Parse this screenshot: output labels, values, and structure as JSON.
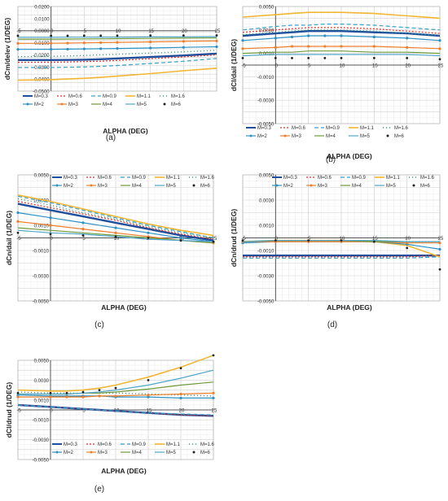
{
  "series_styles": [
    {
      "name": "M=0.3",
      "color": "#1f4e9c",
      "dash": "",
      "width": 2.4,
      "marker": "none"
    },
    {
      "name": "M=0.6",
      "color": "#d9312a",
      "dash": "2,2",
      "width": 1.2,
      "marker": "none"
    },
    {
      "name": "M=0.9",
      "color": "#3aa0c9",
      "dash": "5,3",
      "width": 1.2,
      "marker": "none"
    },
    {
      "name": "M=1.1",
      "color": "#f2b632",
      "dash": "",
      "width": 1.6,
      "marker": "none"
    },
    {
      "name": "M=1.6",
      "color": "#2e9e78",
      "dash": "1,3",
      "width": 1.4,
      "marker": "none"
    },
    {
      "name": "M=2",
      "color": "#2e91c5",
      "dash": "",
      "width": 1.2,
      "marker": "circle"
    },
    {
      "name": "M=3",
      "color": "#f07f2d",
      "dash": "",
      "width": 1.2,
      "marker": "circle"
    },
    {
      "name": "M=4",
      "color": "#6f9a3a",
      "dash": "",
      "width": 1.2,
      "marker": "none"
    },
    {
      "name": "M=5",
      "color": "#52a6c9",
      "dash": "",
      "width": 1.2,
      "marker": "none"
    },
    {
      "name": "M=6",
      "color": "#222222",
      "dash": "0,10",
      "width": 0,
      "marker": "dot"
    }
  ],
  "chart_data": [
    {
      "panel": "(a)",
      "type": "line",
      "ylabel": "dCm/delev (1/DEG)",
      "xlabel": "ALPHA (DEG)",
      "xlim": [
        -5,
        25
      ],
      "ylim": [
        -0.05,
        0.02
      ],
      "yticks": [
        "0.0200",
        "0.0100",
        "0.0000",
        "-0.0100",
        "-0.0200",
        "-0.0300",
        "-0.0400",
        "-0.0500"
      ],
      "xticks": [
        "-5",
        "0",
        "5",
        "10",
        "15",
        "20",
        "25"
      ],
      "x": [
        -5,
        0,
        2.5,
        5,
        7.5,
        10,
        15,
        20,
        25
      ],
      "series": [
        {
          "name": "M=0.3",
          "values": [
            -0.0243,
            -0.0243,
            -0.0242,
            -0.024,
            -0.0236,
            -0.023,
            -0.0218,
            -0.0205,
            -0.019
          ]
        },
        {
          "name": "M=0.6",
          "values": [
            -0.0262,
            -0.0261,
            -0.0259,
            -0.0256,
            -0.0252,
            -0.0246,
            -0.0232,
            -0.0217,
            -0.02
          ]
        },
        {
          "name": "M=0.9",
          "values": [
            -0.0305,
            -0.0305,
            -0.0303,
            -0.03,
            -0.0295,
            -0.0288,
            -0.0272,
            -0.0253,
            -0.023
          ]
        },
        {
          "name": "M=1.1",
          "values": [
            -0.041,
            -0.0405,
            -0.04,
            -0.0394,
            -0.0386,
            -0.0376,
            -0.0355,
            -0.0332,
            -0.031
          ]
        },
        {
          "name": "M=1.6",
          "values": [
            -0.0215,
            -0.0212,
            -0.0209,
            -0.0205,
            -0.02,
            -0.0195,
            -0.0185,
            -0.0175,
            -0.0163
          ]
        },
        {
          "name": "M=2",
          "values": [
            -0.0155,
            -0.0154,
            -0.0153,
            -0.0151,
            -0.0149,
            -0.0147,
            -0.0143,
            -0.0138,
            -0.0133
          ]
        },
        {
          "name": "M=3",
          "values": [
            -0.0105,
            -0.0104,
            -0.0103,
            -0.0101,
            -0.0099,
            -0.0097,
            -0.0093,
            -0.0089,
            -0.0085
          ]
        },
        {
          "name": "M=4",
          "values": [
            -0.007,
            -0.007,
            -0.0069,
            -0.0068,
            -0.0067,
            -0.0066,
            -0.0064,
            -0.0062,
            -0.006
          ]
        },
        {
          "name": "M=5",
          "values": [
            -0.0055,
            -0.0055,
            -0.0054,
            -0.0054,
            -0.0053,
            -0.0053,
            -0.0052,
            -0.0051,
            -0.005
          ]
        },
        {
          "name": "M=6",
          "values": [
            -0.0042,
            -0.0042,
            -0.0042,
            -0.0041,
            -0.0041,
            -0.0041,
            -0.004,
            -0.004,
            -0.0039
          ]
        }
      ]
    },
    {
      "panel": "(b)",
      "type": "line",
      "ylabel": "dCl/dail (1/DEG)",
      "xlabel": "ALPHA (DEG)",
      "xlim": [
        -5,
        25
      ],
      "ylim": [
        -0.005,
        0.005
      ],
      "yticks": [
        "0.0050",
        "0.0030",
        "0.0010",
        "-0.0010",
        "-0.0030",
        "-0.0050"
      ],
      "xticks": [
        "-5",
        "0",
        "5",
        "10",
        "15",
        "20",
        "25"
      ],
      "x": [
        -5,
        0,
        2.5,
        5,
        7.5,
        10,
        15,
        20,
        25
      ],
      "series": [
        {
          "name": "M=0.3",
          "values": [
            0.0025,
            0.0027,
            0.0028,
            0.0029,
            0.0029,
            0.0029,
            0.0028,
            0.0027,
            0.0025
          ]
        },
        {
          "name": "M=0.6",
          "values": [
            0.0028,
            0.003,
            0.0031,
            0.0032,
            0.0032,
            0.0032,
            0.0031,
            0.0029,
            0.0027
          ]
        },
        {
          "name": "M=0.9",
          "values": [
            0.003,
            0.0033,
            0.0034,
            0.0034,
            0.0035,
            0.0035,
            0.0034,
            0.0032,
            0.003
          ]
        },
        {
          "name": "M=1.1",
          "values": [
            0.0041,
            0.0043,
            0.0044,
            0.0045,
            0.0045,
            0.0045,
            0.0044,
            0.0042,
            0.004
          ]
        },
        {
          "name": "M=1.6",
          "values": [
            0.0026,
            0.0028,
            0.0029,
            0.003,
            0.003,
            0.003,
            0.0029,
            0.0027,
            0.0025
          ]
        },
        {
          "name": "M=2",
          "values": [
            0.0021,
            0.0023,
            0.0024,
            0.0025,
            0.0025,
            0.0025,
            0.0024,
            0.0023,
            0.0021
          ]
        },
        {
          "name": "M=3",
          "values": [
            0.0014,
            0.0015,
            0.0016,
            0.0016,
            0.0016,
            0.0016,
            0.0016,
            0.0015,
            0.0014
          ]
        },
        {
          "name": "M=4",
          "values": [
            0.001,
            0.0011,
            0.0011,
            0.0012,
            0.0012,
            0.0012,
            0.0011,
            0.0011,
            0.001
          ]
        },
        {
          "name": "M=5",
          "values": [
            0.0008,
            0.0009,
            0.0009,
            0.0009,
            0.0009,
            0.0009,
            0.0009,
            0.0009,
            0.0008
          ]
        },
        {
          "name": "M=6",
          "values": [
            0.0006,
            0.0006,
            0.0006,
            0.0006,
            0.0006,
            0.0006,
            0.0006,
            0.0006,
            0.0005
          ]
        }
      ]
    },
    {
      "panel": "(c)",
      "type": "line",
      "ylabel": "dCn/dail (1/DEG)",
      "xlabel": "ALPHA (DEG)",
      "xlim": [
        -5,
        25
      ],
      "ylim": [
        -0.005,
        0.005
      ],
      "yticks": [
        "0.0050",
        "0.0030",
        "0.0010",
        "-0.0010",
        "-0.0030",
        "-0.0050"
      ],
      "xticks": [
        "-5",
        "0",
        "5",
        "10",
        "15",
        "20",
        "25"
      ],
      "x": [
        -5,
        0,
        5,
        10,
        15,
        20,
        25
      ],
      "series": [
        {
          "name": "M=0.3",
          "values": [
            0.0027,
            0.0022,
            0.0017,
            0.0012,
            0.0007,
            0.0002,
            -0.0002
          ]
        },
        {
          "name": "M=0.6",
          "values": [
            0.0029,
            0.0024,
            0.0019,
            0.0014,
            0.0008,
            0.0003,
            -0.0001
          ]
        },
        {
          "name": "M=0.9",
          "values": [
            0.0033,
            0.0028,
            0.0022,
            0.0016,
            0.001,
            0.0005,
            0.0
          ]
        },
        {
          "name": "M=1.1",
          "values": [
            0.0034,
            0.0029,
            0.0023,
            0.0017,
            0.0011,
            0.0006,
            0.0002
          ]
        },
        {
          "name": "M=1.6",
          "values": [
            0.0031,
            0.0026,
            0.002,
            0.0015,
            0.0009,
            0.0004,
            0.0
          ]
        },
        {
          "name": "M=2",
          "values": [
            0.002,
            0.0016,
            0.0012,
            0.0008,
            0.0004,
            0.0,
            -0.0003
          ]
        },
        {
          "name": "M=3",
          "values": [
            0.0013,
            0.001,
            0.0007,
            0.0004,
            0.0001,
            -0.0002,
            -0.0004
          ]
        },
        {
          "name": "M=4",
          "values": [
            0.0008,
            0.0006,
            0.0004,
            0.0002,
            0.0,
            -0.0002,
            -0.0004
          ]
        },
        {
          "name": "M=5",
          "values": [
            0.0006,
            0.0004,
            0.0003,
            0.0001,
            -0.0001,
            -0.0002,
            -0.0003
          ]
        },
        {
          "name": "M=6",
          "values": [
            0.0004,
            0.0003,
            0.0002,
            0.0001,
            0.0,
            -0.0002,
            -0.0003
          ]
        }
      ]
    },
    {
      "panel": "(d)",
      "type": "line",
      "ylabel": "dCn/drud (1/DEG)",
      "xlabel": "ALPHA (DEG)",
      "xlim": [
        -5,
        25
      ],
      "ylim": [
        -0.005,
        0.005
      ],
      "yticks": [
        "0.0050",
        "0.0030",
        "0.0010",
        "-0.0010",
        "-0.0030",
        "-0.0050"
      ],
      "xticks": [
        "-5",
        "0",
        "5",
        "10",
        "15",
        "20",
        "25"
      ],
      "x": [
        -5,
        0,
        5,
        10,
        15,
        20,
        25
      ],
      "series": [
        {
          "name": "M=0.3",
          "values": [
            -0.0014,
            -0.0014,
            -0.0014,
            -0.0014,
            -0.0014,
            -0.0014,
            -0.0014
          ]
        },
        {
          "name": "M=0.6",
          "values": [
            -0.0015,
            -0.0015,
            -0.0015,
            -0.0015,
            -0.0015,
            -0.0015,
            -0.0014
          ]
        },
        {
          "name": "M=0.9",
          "values": [
            -0.0016,
            -0.0016,
            -0.0016,
            -0.0016,
            -0.0016,
            -0.0016,
            -0.0015
          ]
        },
        {
          "name": "M=1.1",
          "values": [
            -0.0003,
            -0.0002,
            -0.0002,
            -0.0002,
            -0.0003,
            -0.0006,
            -0.0015
          ]
        },
        {
          "name": "M=1.6",
          "values": [
            -0.0004,
            -0.0003,
            -0.0003,
            -0.0003,
            -0.0003,
            -0.0003,
            -0.0003
          ]
        },
        {
          "name": "M=2",
          "values": [
            -0.0004,
            -0.0003,
            -0.0003,
            -0.0003,
            -0.0003,
            -0.0005,
            -0.0009
          ]
        },
        {
          "name": "M=3",
          "values": [
            -0.0003,
            -0.0003,
            -0.0003,
            -0.0003,
            -0.0003,
            -0.0004,
            -0.0004
          ]
        },
        {
          "name": "M=4",
          "values": [
            -0.0003,
            -0.0002,
            -0.0002,
            -0.0002,
            -0.0003,
            -0.0003,
            -0.0003
          ]
        },
        {
          "name": "M=5",
          "values": [
            -0.0003,
            -0.0002,
            -0.0002,
            -0.0002,
            -0.0002,
            -0.0003,
            -0.0003
          ]
        },
        {
          "name": "M=6",
          "values": [
            -0.0002,
            -0.0002,
            -0.0002,
            -0.0002,
            -0.0003,
            -0.0008,
            -0.0025
          ]
        }
      ]
    },
    {
      "panel": "(e)",
      "type": "line",
      "ylabel": "dCl/drud (1/DEG)",
      "xlabel": "ALPHA (DEG)",
      "xlim": [
        -5,
        25
      ],
      "ylim": [
        -0.005,
        0.005
      ],
      "yticks": [
        "0.0050",
        "0.0030",
        "0.0010",
        "-0.0010",
        "-0.0030",
        "-0.0050"
      ],
      "xticks": [
        "-5",
        "0",
        "5",
        "10",
        "15",
        "20",
        "25"
      ],
      "x": [
        -5,
        0,
        2.5,
        5,
        7.5,
        10,
        15,
        20,
        25
      ],
      "series": [
        {
          "name": "M=0.3",
          "values": [
            0.0005,
            0.0003,
            0.0002,
            0.0001,
            0.0,
            -0.0001,
            -0.0003,
            -0.0005,
            -0.0006
          ]
        },
        {
          "name": "M=0.6",
          "values": [
            0.0005,
            0.0003,
            0.0002,
            0.0001,
            0.0,
            -0.0001,
            -0.0003,
            -0.0005,
            -0.0006
          ]
        },
        {
          "name": "M=0.9",
          "values": [
            0.0005,
            0.0003,
            0.0002,
            0.0001,
            0.0,
            -0.0001,
            -0.0003,
            -0.0004,
            -0.0005
          ]
        },
        {
          "name": "M=1.1",
          "values": [
            0.002,
            0.0019,
            0.0019,
            0.002,
            0.0022,
            0.0025,
            0.0033,
            0.0043,
            0.0055
          ]
        },
        {
          "name": "M=1.6",
          "values": [
            0.0018,
            0.0017,
            0.0017,
            0.0017,
            0.0017,
            0.0017,
            0.0016,
            0.0015,
            0.0014
          ]
        },
        {
          "name": "M=2",
          "values": [
            0.0015,
            0.0014,
            0.0014,
            0.0014,
            0.0014,
            0.0013,
            0.0013,
            0.0012,
            0.0012
          ]
        },
        {
          "name": "M=3",
          "values": [
            0.0013,
            0.0013,
            0.0013,
            0.0013,
            0.0014,
            0.0014,
            0.0015,
            0.0016,
            0.0017
          ]
        },
        {
          "name": "M=4",
          "values": [
            0.0016,
            0.0016,
            0.0016,
            0.0017,
            0.0017,
            0.0018,
            0.0021,
            0.0025,
            0.0028
          ]
        },
        {
          "name": "M=5",
          "values": [
            0.0016,
            0.0016,
            0.0016,
            0.0017,
            0.0018,
            0.002,
            0.0025,
            0.0032,
            0.004
          ]
        },
        {
          "name": "M=6",
          "values": [
            0.0017,
            0.0017,
            0.0017,
            0.0018,
            0.002,
            0.0022,
            0.003,
            0.0042,
            0.0055
          ]
        }
      ]
    }
  ]
}
